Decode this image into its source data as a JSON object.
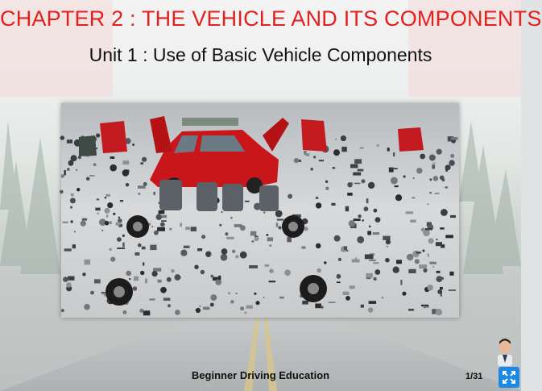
{
  "slide": {
    "title": "CHAPTER 2 : THE VEHICLE AND ITS COMPONENTS",
    "subtitle": "Unit 1 : Use of Basic Vehicle Components",
    "footer_text": "Beginner Driving Education",
    "page_indicator": "1/31"
  },
  "colors": {
    "title": "#e0211f",
    "car_body": "#c8161b",
    "fullscreen_button": "#1e88e5"
  },
  "icons": {
    "fullscreen": "expand-arrows-icon",
    "avatar": "instructor-avatar-icon"
  }
}
